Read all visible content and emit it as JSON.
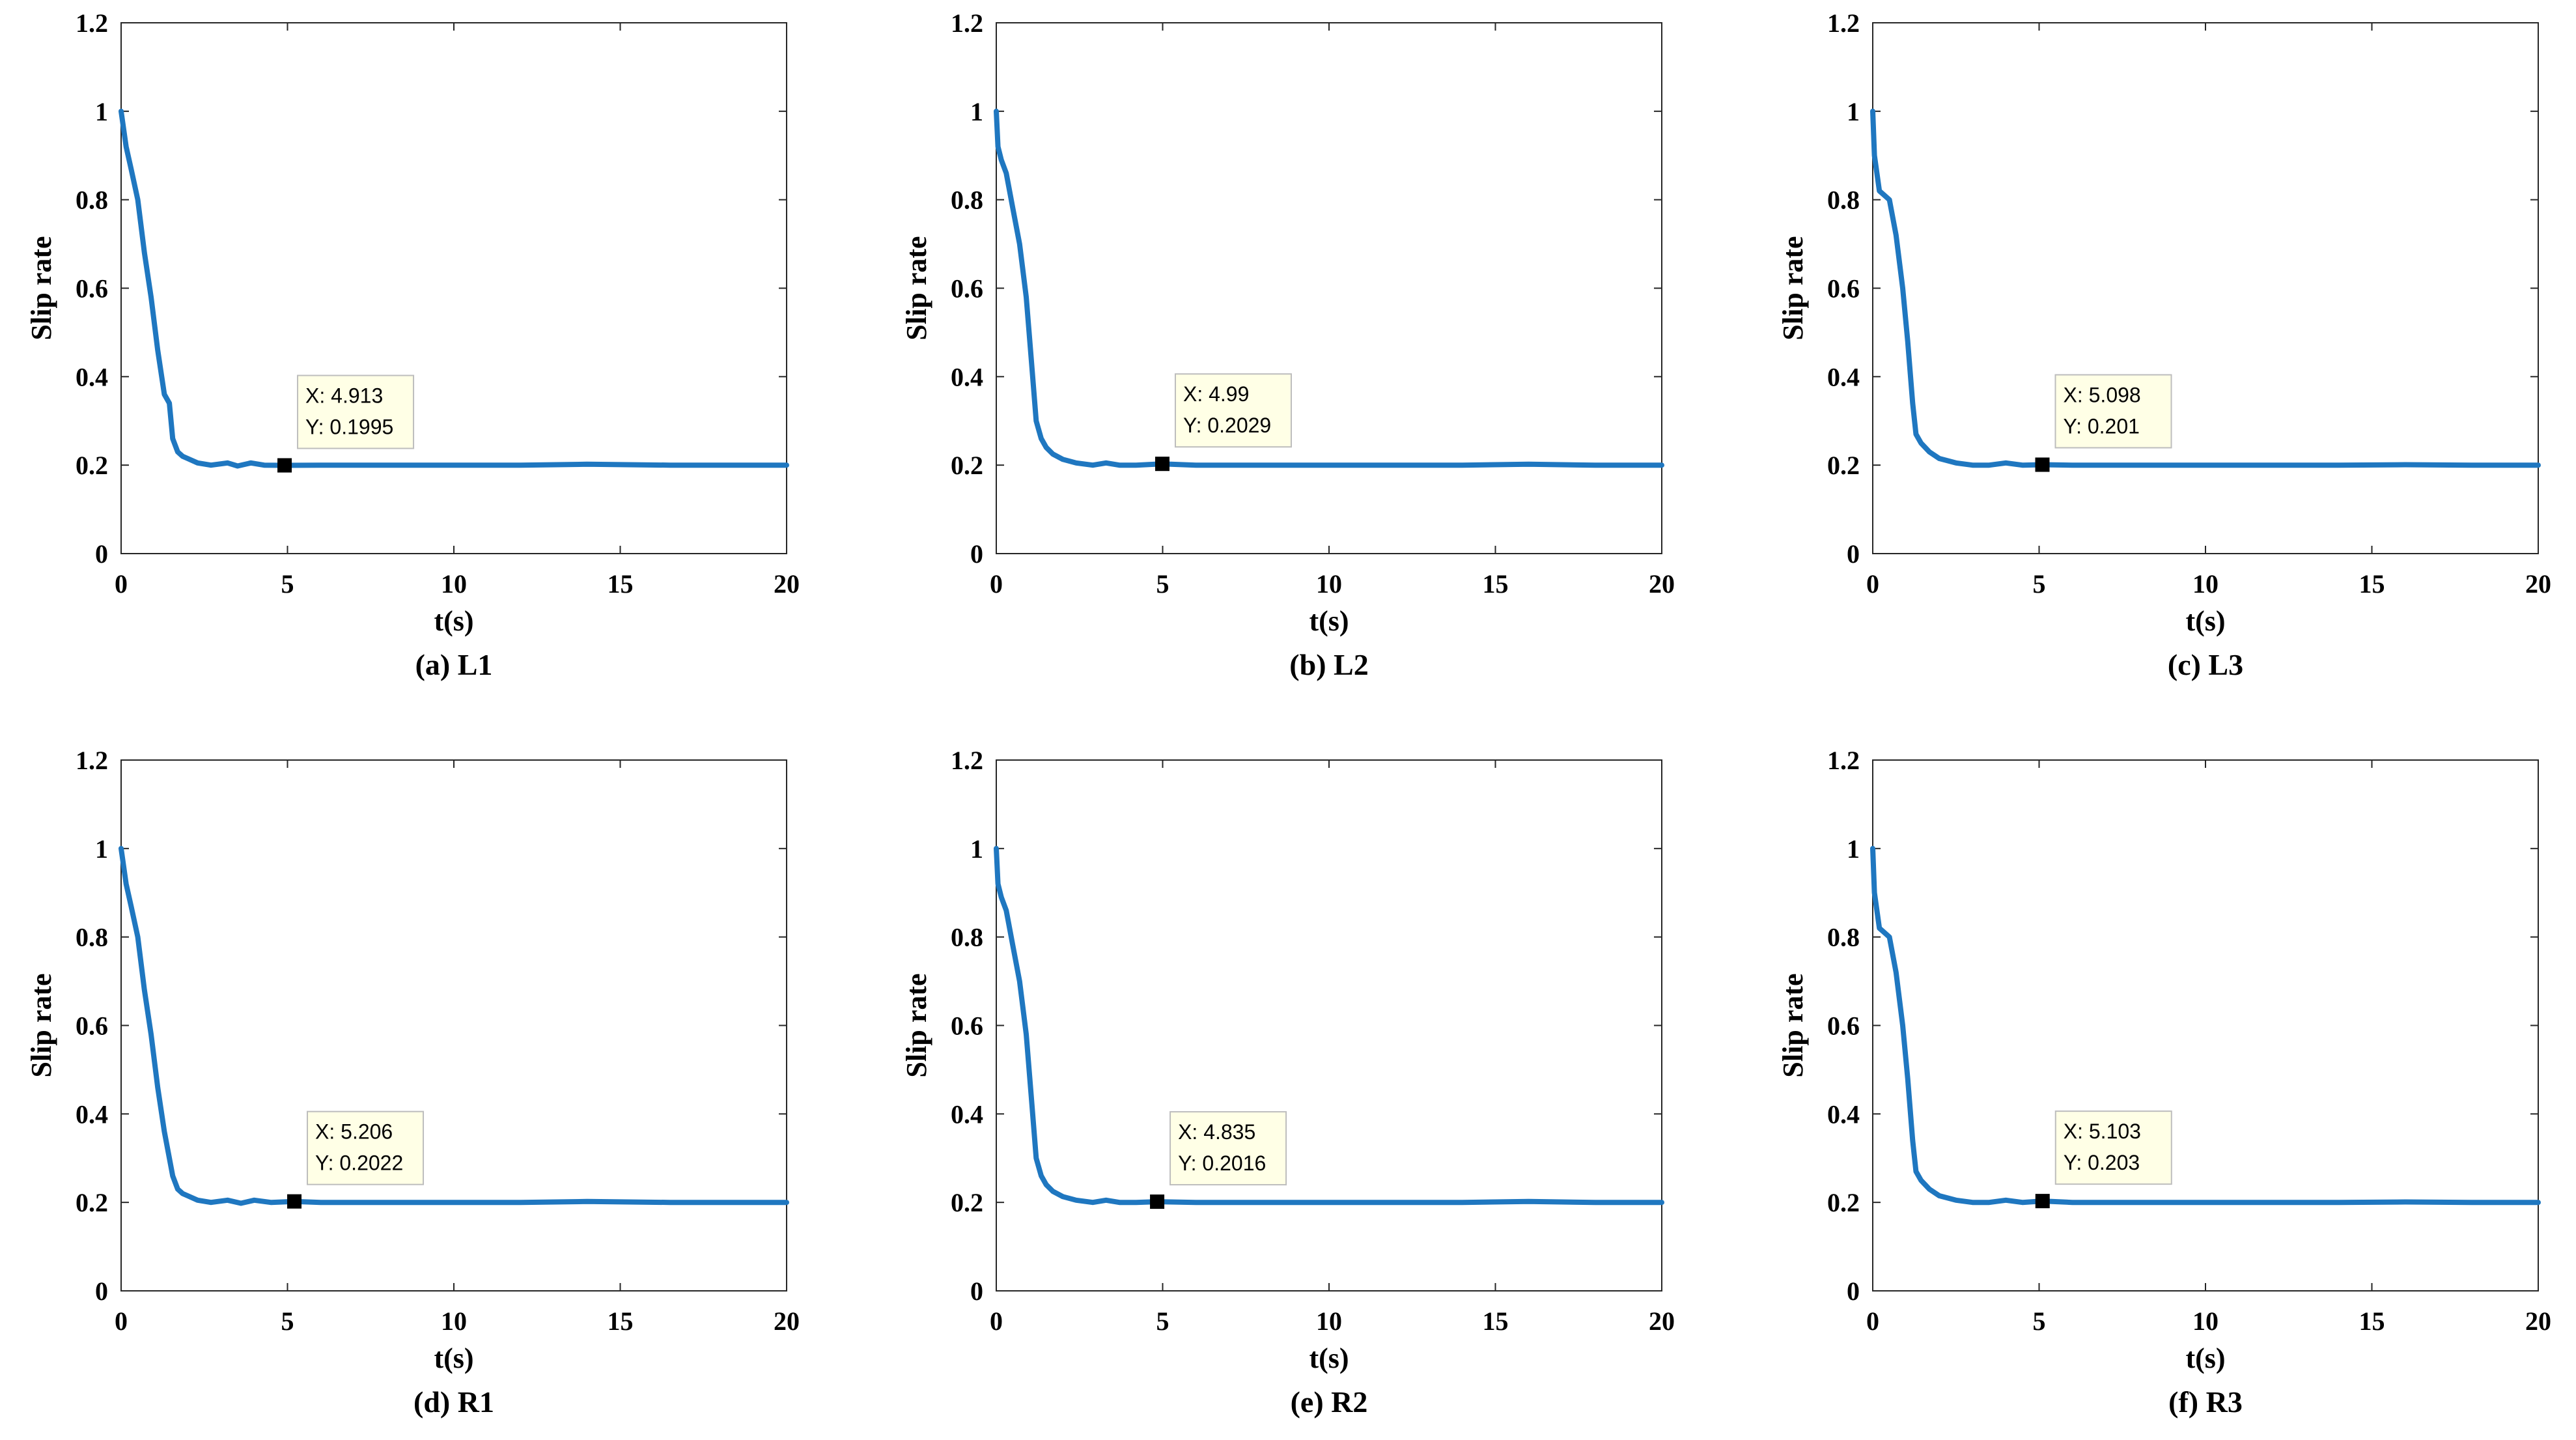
{
  "chart_data": [
    {
      "type": "line",
      "caption": "(a) L1",
      "xlabel": "t(s)",
      "ylabel": "Slip rate",
      "xlim": [
        0,
        20
      ],
      "ylim": [
        0,
        1.2
      ],
      "xticks": [
        "0",
        "5",
        "10",
        "15",
        "20"
      ],
      "yticks": [
        "0",
        "0.2",
        "0.4",
        "0.6",
        "0.8",
        "1",
        "1.2"
      ],
      "grid": false,
      "series": [
        {
          "name": "Slip rate",
          "color": "#1f77c0",
          "x": [
            0,
            0.15,
            0.3,
            0.5,
            0.7,
            0.9,
            1.1,
            1.3,
            1.45,
            1.55,
            1.7,
            1.85,
            2.0,
            2.3,
            2.7,
            3.2,
            3.5,
            3.9,
            4.3,
            4.913,
            6,
            8,
            10,
            12,
            14,
            16.5,
            17,
            20
          ],
          "y": [
            1.0,
            0.92,
            0.87,
            0.8,
            0.68,
            0.58,
            0.46,
            0.36,
            0.34,
            0.26,
            0.23,
            0.22,
            0.215,
            0.205,
            0.2,
            0.205,
            0.198,
            0.205,
            0.2,
            0.1995,
            0.2,
            0.2,
            0.2,
            0.2,
            0.202,
            0.2,
            0.2,
            0.2
          ]
        }
      ],
      "datatip": {
        "x": 4.913,
        "y": 0.1995,
        "x_text": "X: 4.913",
        "y_text": "Y: 0.1995"
      }
    },
    {
      "type": "line",
      "caption": "(b) L2",
      "xlabel": "t(s)",
      "ylabel": "Slip rate",
      "xlim": [
        0,
        20
      ],
      "ylim": [
        0,
        1.2
      ],
      "xticks": [
        "0",
        "5",
        "10",
        "15",
        "20"
      ],
      "yticks": [
        "0",
        "0.2",
        "0.4",
        "0.6",
        "0.8",
        "1",
        "1.2"
      ],
      "grid": false,
      "series": [
        {
          "name": "Slip rate",
          "color": "#1f77c0",
          "x": [
            0,
            0.05,
            0.15,
            0.3,
            0.5,
            0.7,
            0.9,
            1.05,
            1.2,
            1.35,
            1.5,
            1.7,
            2.0,
            2.4,
            2.9,
            3.3,
            3.7,
            4.2,
            4.99,
            6,
            8,
            10,
            12,
            14,
            16,
            18,
            20
          ],
          "y": [
            1.0,
            0.92,
            0.89,
            0.86,
            0.78,
            0.7,
            0.58,
            0.44,
            0.3,
            0.26,
            0.24,
            0.225,
            0.213,
            0.205,
            0.2,
            0.205,
            0.2,
            0.2,
            0.2029,
            0.2,
            0.2,
            0.2,
            0.2,
            0.2,
            0.202,
            0.2,
            0.2
          ]
        }
      ],
      "datatip": {
        "x": 4.99,
        "y": 0.2029,
        "x_text": "X: 4.99",
        "y_text": "Y: 0.2029"
      }
    },
    {
      "type": "line",
      "caption": "(c) L3",
      "xlabel": "t(s)",
      "ylabel": "Slip rate",
      "xlim": [
        0,
        20
      ],
      "ylim": [
        0,
        1.2
      ],
      "xticks": [
        "0",
        "5",
        "10",
        "15",
        "20"
      ],
      "yticks": [
        "0",
        "0.2",
        "0.4",
        "0.6",
        "0.8",
        "1",
        "1.2"
      ],
      "grid": false,
      "series": [
        {
          "name": "Slip rate",
          "color": "#1f77c0",
          "x": [
            0,
            0.05,
            0.2,
            0.35,
            0.5,
            0.7,
            0.9,
            1.05,
            1.2,
            1.3,
            1.45,
            1.7,
            2.0,
            2.5,
            3.0,
            3.5,
            4.0,
            4.5,
            5.098,
            6,
            8,
            10,
            12,
            14,
            16,
            18,
            20
          ],
          "y": [
            1.0,
            0.9,
            0.82,
            0.81,
            0.8,
            0.72,
            0.6,
            0.48,
            0.34,
            0.27,
            0.25,
            0.23,
            0.215,
            0.205,
            0.2,
            0.2,
            0.205,
            0.2,
            0.201,
            0.2,
            0.2,
            0.2,
            0.2,
            0.2,
            0.201,
            0.2,
            0.2
          ]
        }
      ],
      "datatip": {
        "x": 5.098,
        "y": 0.201,
        "x_text": "X: 5.098",
        "y_text": "Y: 0.201"
      }
    },
    {
      "type": "line",
      "caption": "(d) R1",
      "xlabel": "t(s)",
      "ylabel": "Slip rate",
      "xlim": [
        0,
        20
      ],
      "ylim": [
        0,
        1.2
      ],
      "xticks": [
        "0",
        "5",
        "10",
        "15",
        "20"
      ],
      "yticks": [
        "0",
        "0.2",
        "0.4",
        "0.6",
        "0.8",
        "1",
        "1.2"
      ],
      "grid": false,
      "series": [
        {
          "name": "Slip rate",
          "color": "#1f77c0",
          "x": [
            0,
            0.15,
            0.3,
            0.5,
            0.7,
            0.9,
            1.1,
            1.3,
            1.45,
            1.55,
            1.7,
            1.85,
            2.0,
            2.3,
            2.7,
            3.2,
            3.6,
            4.0,
            4.5,
            5.206,
            6,
            8,
            10,
            12,
            14,
            16.5,
            17,
            20
          ],
          "y": [
            1.0,
            0.92,
            0.87,
            0.8,
            0.68,
            0.58,
            0.46,
            0.36,
            0.3,
            0.26,
            0.23,
            0.22,
            0.215,
            0.205,
            0.2,
            0.205,
            0.198,
            0.205,
            0.2,
            0.2022,
            0.2,
            0.2,
            0.2,
            0.2,
            0.202,
            0.2,
            0.2,
            0.2
          ]
        }
      ],
      "datatip": {
        "x": 5.206,
        "y": 0.2022,
        "x_text": "X: 5.206",
        "y_text": "Y: 0.2022"
      }
    },
    {
      "type": "line",
      "caption": "(e) R2",
      "xlabel": "t(s)",
      "ylabel": "Slip rate",
      "xlim": [
        0,
        20
      ],
      "ylim": [
        0,
        1.2
      ],
      "xticks": [
        "0",
        "5",
        "10",
        "15",
        "20"
      ],
      "yticks": [
        "0",
        "0.2",
        "0.4",
        "0.6",
        "0.8",
        "1",
        "1.2"
      ],
      "grid": false,
      "series": [
        {
          "name": "Slip rate",
          "color": "#1f77c0",
          "x": [
            0,
            0.05,
            0.15,
            0.3,
            0.5,
            0.7,
            0.9,
            1.05,
            1.2,
            1.35,
            1.5,
            1.7,
            2.0,
            2.4,
            2.9,
            3.3,
            3.7,
            4.2,
            4.835,
            6,
            8,
            10,
            12,
            14,
            16,
            18,
            20
          ],
          "y": [
            1.0,
            0.92,
            0.89,
            0.86,
            0.78,
            0.7,
            0.58,
            0.44,
            0.3,
            0.26,
            0.24,
            0.225,
            0.213,
            0.205,
            0.2,
            0.205,
            0.2,
            0.2,
            0.2016,
            0.2,
            0.2,
            0.2,
            0.2,
            0.2,
            0.202,
            0.2,
            0.2
          ]
        }
      ],
      "datatip": {
        "x": 4.835,
        "y": 0.2016,
        "x_text": "X: 4.835",
        "y_text": "Y: 0.2016"
      }
    },
    {
      "type": "line",
      "caption": "(f) R3",
      "xlabel": "t(s)",
      "ylabel": "Slip rate",
      "xlim": [
        0,
        20
      ],
      "ylim": [
        0,
        1.2
      ],
      "xticks": [
        "0",
        "5",
        "10",
        "15",
        "20"
      ],
      "yticks": [
        "0",
        "0.2",
        "0.4",
        "0.6",
        "0.8",
        "1",
        "1.2"
      ],
      "grid": false,
      "series": [
        {
          "name": "Slip rate",
          "color": "#1f77c0",
          "x": [
            0,
            0.05,
            0.2,
            0.35,
            0.5,
            0.7,
            0.9,
            1.05,
            1.2,
            1.3,
            1.45,
            1.7,
            2.0,
            2.5,
            3.0,
            3.5,
            4.0,
            4.5,
            5.103,
            6,
            8,
            10,
            12,
            14,
            16,
            18,
            20
          ],
          "y": [
            1.0,
            0.9,
            0.82,
            0.81,
            0.8,
            0.72,
            0.6,
            0.48,
            0.34,
            0.27,
            0.25,
            0.23,
            0.215,
            0.205,
            0.2,
            0.2,
            0.205,
            0.2,
            0.203,
            0.2,
            0.2,
            0.2,
            0.2,
            0.2,
            0.201,
            0.2,
            0.2
          ]
        }
      ],
      "datatip": {
        "x": 5.103,
        "y": 0.203,
        "x_text": "X: 5.103",
        "y_text": "Y: 0.203"
      }
    }
  ]
}
